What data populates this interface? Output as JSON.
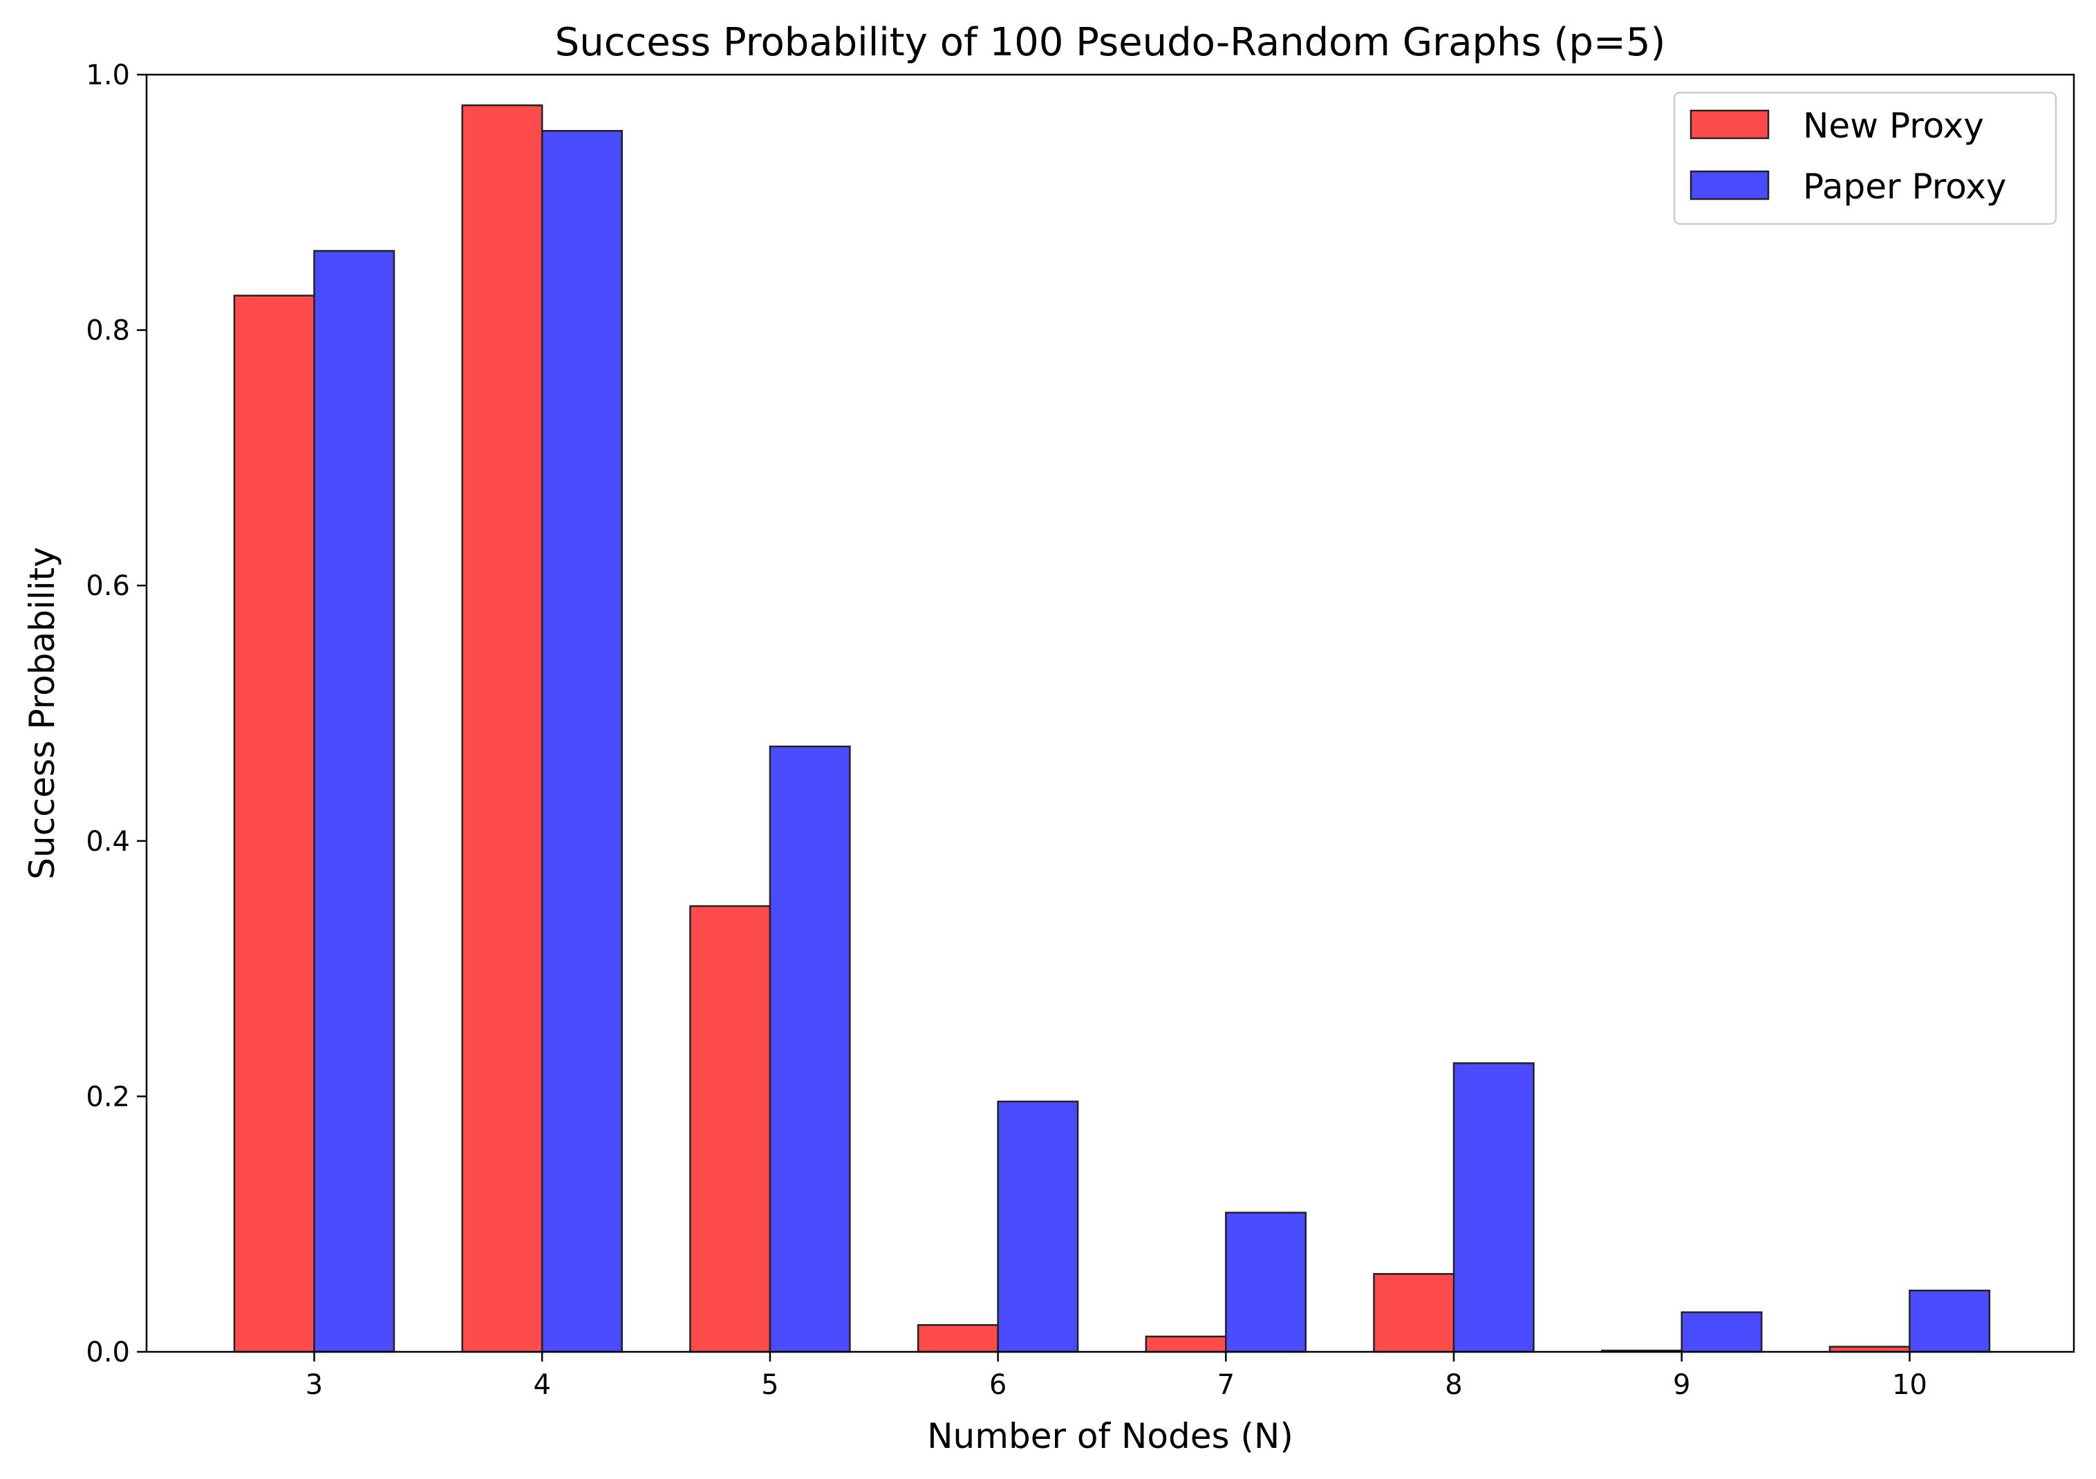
{
  "chart_data": {
    "type": "bar",
    "title": "Success Probability of 100 Pseudo-Random Graphs (p=5)",
    "xlabel": "Number of Nodes (N)",
    "ylabel": "Success Probability",
    "categories": [
      "3",
      "4",
      "5",
      "6",
      "7",
      "8",
      "9",
      "10"
    ],
    "ylim": [
      0,
      1.0
    ],
    "yticks": [
      "0.0",
      "0.2",
      "0.4",
      "0.6",
      "0.8",
      "1.0"
    ],
    "grid": false,
    "legend_position": "top-right",
    "series": [
      {
        "name": "New Proxy",
        "color": "#ff4b4b",
        "values": [
          0.827,
          0.976,
          0.349,
          0.021,
          0.012,
          0.061,
          0.001,
          0.004
        ]
      },
      {
        "name": "Paper Proxy",
        "color": "#4a4aff",
        "values": [
          0.862,
          0.956,
          0.474,
          0.196,
          0.109,
          0.226,
          0.031,
          0.048
        ]
      }
    ]
  }
}
